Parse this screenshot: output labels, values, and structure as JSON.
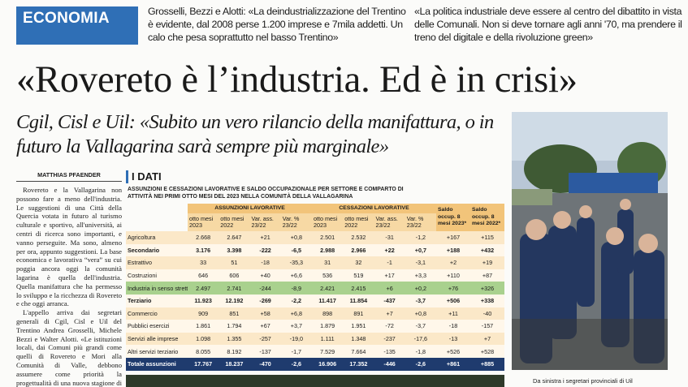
{
  "header": {
    "section": "ECONOMIA",
    "deck_left": "Grosselli, Bezzi e Alotti: «La deindustrializzazione del Trentino è evidente, dal 2008 perse 1.200 imprese e 7mila addetti. Un calo che pesa soprattutto nel basso Trentino»",
    "deck_right": "«La politica industriale deve essere al centro del dibattito in vista delle Comunali. Non si deve tornare agli anni '70, ma prendere il treno del digitale e della rivoluzione green»"
  },
  "headline": "«Rovereto è l’industria. Ed è in crisi»",
  "subheadline": "Cgil, Cisl e Uil: «Subito un vero rilancio della manifattura, o in futuro la Vallagarina sarà sempre più marginale»",
  "article": {
    "author": "MATTHIAS PFAENDER",
    "paragraphs": [
      "Rovereto e la Vallagarina non possono fare a meno dell'industria. Le suggestioni di una Città della Quercia votata in futuro al turismo culturale e sportivo, all'università, ai centri di ricerca sono importanti, e vanno perseguite. Ma sono, almeno per ora, appunto suggestioni. La base economica e lavorativa “vera” su cui poggia ancora oggi la comunità lagarina è quella dell'industria. Quella manifattura che ha permesso lo sviluppo e la ricchezza di Rovereto e che oggi arranca.",
      "L'appello arriva dai segretari generali di Cgil, Cisl e Uil del Trentino Andrea Grosselli, Michele Bezzi e Walter Alotti. «Le istituzioni locali, dai Comuni più grandi come quelli di Rovereto e Mori alla Comunità di Valle, debbono assumere come priorità la progettualità di una nuova stagione di industrializzazione del territo-"
    ]
  },
  "table": {
    "title": "I DATI",
    "subtitle": "ASSUNZIONI E CESSAZIONI LAVORATIVE E SALDO OCCUPAZIONALE PER SETTORE E COMPARTO DI ATTIVITÀ NEI PRIMI OTTO MESI DEL 2023 NELLA COMUNITÀ DELLA VALLAGARINA",
    "groups": [
      "ASSUNZIONI LAVORATIVE",
      "CESSAZIONI LAVORATIVE",
      "Saldo occup. 8 mesi 2023*",
      "Saldo occup. 8 mesi 2022*"
    ],
    "columns": [
      "otto mesi 2023",
      "otto mesi 2022",
      "Var. ass. 23/22",
      "Var. % 23/22",
      "otto mesi 2023",
      "otto mesi 2022",
      "Var. ass. 23/22",
      "Var. % 23/22"
    ],
    "rows": [
      {
        "label": "Agricoltura",
        "cells": [
          "2.668",
          "2.647",
          "+21",
          "+0,8",
          "2.501",
          "2.532",
          "-31",
          "-1,2",
          "+167",
          "+115"
        ]
      },
      {
        "label": "Secondario",
        "cells": [
          "3.176",
          "3.398",
          "-222",
          "-6,5",
          "2.988",
          "2.966",
          "+22",
          "+0,7",
          "+188",
          "+432"
        ]
      },
      {
        "label": "Estrattivo",
        "cells": [
          "33",
          "51",
          "-18",
          "-35,3",
          "31",
          "32",
          "-1",
          "-3,1",
          "+2",
          "+19"
        ]
      },
      {
        "label": "Costruzioni",
        "cells": [
          "646",
          "606",
          "+40",
          "+6,6",
          "536",
          "519",
          "+17",
          "+3,3",
          "+110",
          "+87"
        ]
      },
      {
        "label": "Industria in senso stretto",
        "cells": [
          "2.497",
          "2.741",
          "-244",
          "-8,9",
          "2.421",
          "2.415",
          "+6",
          "+0,2",
          "+76",
          "+326"
        ]
      },
      {
        "label": "Terziario",
        "cells": [
          "11.923",
          "12.192",
          "-269",
          "-2,2",
          "11.417",
          "11.854",
          "-437",
          "-3,7",
          "+506",
          "+338"
        ]
      },
      {
        "label": "Commercio",
        "cells": [
          "909",
          "851",
          "+58",
          "+6,8",
          "898",
          "891",
          "+7",
          "+0,8",
          "+11",
          "-40"
        ]
      },
      {
        "label": "Pubblici esercizi",
        "cells": [
          "1.861",
          "1.794",
          "+67",
          "+3,7",
          "1.879",
          "1.951",
          "-72",
          "-3,7",
          "-18",
          "-157"
        ]
      },
      {
        "label": "Servizi alle imprese",
        "cells": [
          "1.098",
          "1.355",
          "-257",
          "-19,0",
          "1.111",
          "1.348",
          "-237",
          "-17,6",
          "-13",
          "+7"
        ]
      },
      {
        "label": "Altri servizi terziario",
        "cells": [
          "8.055",
          "8.192",
          "-137",
          "-1,7",
          "7.529",
          "7.664",
          "-135",
          "-1,8",
          "+526",
          "+528"
        ]
      },
      {
        "label": "Totale assunzioni",
        "cells": [
          "17.767",
          "18.237",
          "-470",
          "-2,6",
          "16.906",
          "17.352",
          "-446",
          "-2,6",
          "+861",
          "+885"
        ]
      }
    ]
  },
  "photo": {
    "caption": "Da sinistra i segretari provinciali di Uil"
  }
}
